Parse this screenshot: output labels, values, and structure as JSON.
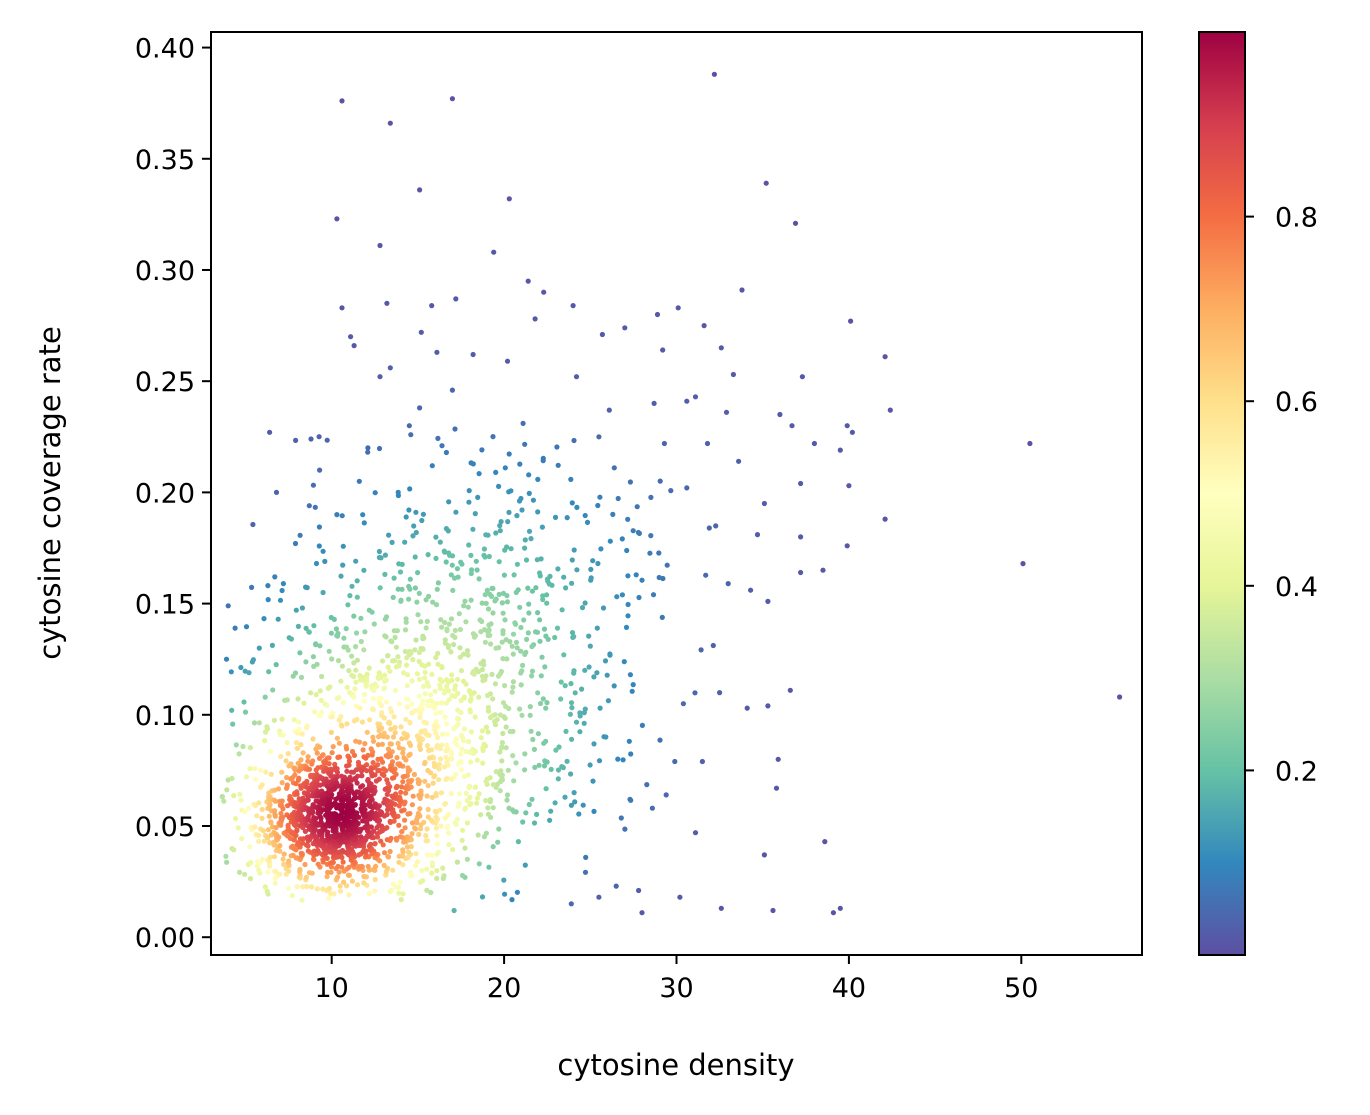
{
  "chart_data": {
    "type": "scatter",
    "title": "",
    "xlabel": "cytosine density",
    "ylabel": "cytosine coverage rate",
    "xlim": [
      3,
      57
    ],
    "ylim": [
      -0.008,
      0.407
    ],
    "x_ticks": [
      "10",
      "20",
      "30",
      "40",
      "50"
    ],
    "x_tick_values": [
      10,
      20,
      30,
      40,
      50
    ],
    "y_ticks": [
      "0.00",
      "0.05",
      "0.10",
      "0.15",
      "0.20",
      "0.25",
      "0.30",
      "0.35",
      "0.40"
    ],
    "y_tick_values": [
      0.0,
      0.05,
      0.1,
      0.15,
      0.2,
      0.25,
      0.3,
      0.35,
      0.4
    ],
    "grid": false,
    "colorbar": {
      "colormap": "Spectral_r",
      "range": [
        0.0,
        1.0
      ],
      "ticks": [
        "0.2",
        "0.4",
        "0.6",
        "0.8"
      ],
      "tick_values": [
        0.2,
        0.4,
        0.6,
        0.8
      ]
    },
    "density_core": {
      "x_center": 10,
      "y_center": 0.052,
      "note_count": 2500
    },
    "sparse_points": [
      [
        32.2,
        0.388
      ],
      [
        17.0,
        0.377
      ],
      [
        10.6,
        0.376
      ],
      [
        13.4,
        0.366
      ],
      [
        35.2,
        0.339
      ],
      [
        15.1,
        0.336
      ],
      [
        20.3,
        0.332
      ],
      [
        10.3,
        0.323
      ],
      [
        36.9,
        0.321
      ],
      [
        12.8,
        0.311
      ],
      [
        19.4,
        0.308
      ],
      [
        21.4,
        0.295
      ],
      [
        33.8,
        0.291
      ],
      [
        22.3,
        0.29
      ],
      [
        17.2,
        0.287
      ],
      [
        13.2,
        0.285
      ],
      [
        15.8,
        0.284
      ],
      [
        10.6,
        0.283
      ],
      [
        30.1,
        0.283
      ],
      [
        24.0,
        0.284
      ],
      [
        28.9,
        0.28
      ],
      [
        21.8,
        0.278
      ],
      [
        40.1,
        0.277
      ],
      [
        31.6,
        0.275
      ],
      [
        27.0,
        0.274
      ],
      [
        15.2,
        0.272
      ],
      [
        11.1,
        0.27
      ],
      [
        25.7,
        0.271
      ],
      [
        11.3,
        0.266
      ],
      [
        32.6,
        0.265
      ],
      [
        16.1,
        0.263
      ],
      [
        29.2,
        0.264
      ],
      [
        18.2,
        0.262
      ],
      [
        42.1,
        0.261
      ],
      [
        20.2,
        0.259
      ],
      [
        13.4,
        0.256
      ],
      [
        33.3,
        0.253
      ],
      [
        24.2,
        0.252
      ],
      [
        12.8,
        0.252
      ],
      [
        37.3,
        0.252
      ],
      [
        17.0,
        0.246
      ],
      [
        31.1,
        0.243
      ],
      [
        30.6,
        0.241
      ],
      [
        42.4,
        0.237
      ],
      [
        36.0,
        0.235
      ],
      [
        15.1,
        0.238
      ],
      [
        32.9,
        0.236
      ],
      [
        26.1,
        0.237
      ],
      [
        28.7,
        0.24
      ],
      [
        6.4,
        0.227
      ],
      [
        21.1,
        0.231
      ],
      [
        39.9,
        0.23
      ],
      [
        36.7,
        0.23
      ],
      [
        38.0,
        0.222
      ],
      [
        39.5,
        0.219
      ],
      [
        50.5,
        0.222
      ],
      [
        8.8,
        0.224
      ],
      [
        25.5,
        0.225
      ],
      [
        29.3,
        0.222
      ],
      [
        31.8,
        0.222
      ],
      [
        33.6,
        0.214
      ],
      [
        40.2,
        0.227
      ],
      [
        9.3,
        0.21
      ],
      [
        37.2,
        0.204
      ],
      [
        40.0,
        0.203
      ],
      [
        6.8,
        0.2
      ],
      [
        30.6,
        0.202
      ],
      [
        35.1,
        0.195
      ],
      [
        42.1,
        0.188
      ],
      [
        8.7,
        0.194
      ],
      [
        31.9,
        0.184
      ],
      [
        34.7,
        0.181
      ],
      [
        37.2,
        0.18
      ],
      [
        39.9,
        0.176
      ],
      [
        7.9,
        0.177
      ],
      [
        50.1,
        0.168
      ],
      [
        38.5,
        0.165
      ],
      [
        37.2,
        0.164
      ],
      [
        6.7,
        0.162
      ],
      [
        34.3,
        0.156
      ],
      [
        4.0,
        0.149
      ],
      [
        35.3,
        0.151
      ],
      [
        33.0,
        0.159
      ],
      [
        4.4,
        0.139
      ],
      [
        55.7,
        0.108
      ],
      [
        36.6,
        0.111
      ],
      [
        35.3,
        0.104
      ],
      [
        34.1,
        0.103
      ],
      [
        32.5,
        0.11
      ],
      [
        30.4,
        0.105
      ],
      [
        4.2,
        0.102
      ],
      [
        3.9,
        0.125
      ],
      [
        35.9,
        0.08
      ],
      [
        31.5,
        0.079
      ],
      [
        29.9,
        0.079
      ],
      [
        35.8,
        0.067
      ],
      [
        29.4,
        0.064
      ],
      [
        28.6,
        0.058
      ],
      [
        27.3,
        0.062
      ],
      [
        31.1,
        0.047
      ],
      [
        38.6,
        0.043
      ],
      [
        35.1,
        0.037
      ],
      [
        26.5,
        0.023
      ],
      [
        27.8,
        0.021
      ],
      [
        25.5,
        0.018
      ],
      [
        30.2,
        0.018
      ],
      [
        23.9,
        0.015
      ],
      [
        32.6,
        0.013
      ],
      [
        35.6,
        0.012
      ],
      [
        39.5,
        0.013
      ],
      [
        39.1,
        0.011
      ],
      [
        28.0,
        0.011
      ],
      [
        17.1,
        0.012
      ],
      [
        7.5,
        0.022
      ],
      [
        5.7,
        0.034
      ],
      [
        6.9,
        0.143
      ],
      [
        7.2,
        0.159
      ],
      [
        5.8,
        0.13
      ],
      [
        8.3,
        0.148
      ],
      [
        9.5,
        0.155
      ],
      [
        10.3,
        0.19
      ],
      [
        11.6,
        0.205
      ],
      [
        12.1,
        0.22
      ],
      [
        14.5,
        0.23
      ],
      [
        16.4,
        0.221
      ]
    ]
  }
}
